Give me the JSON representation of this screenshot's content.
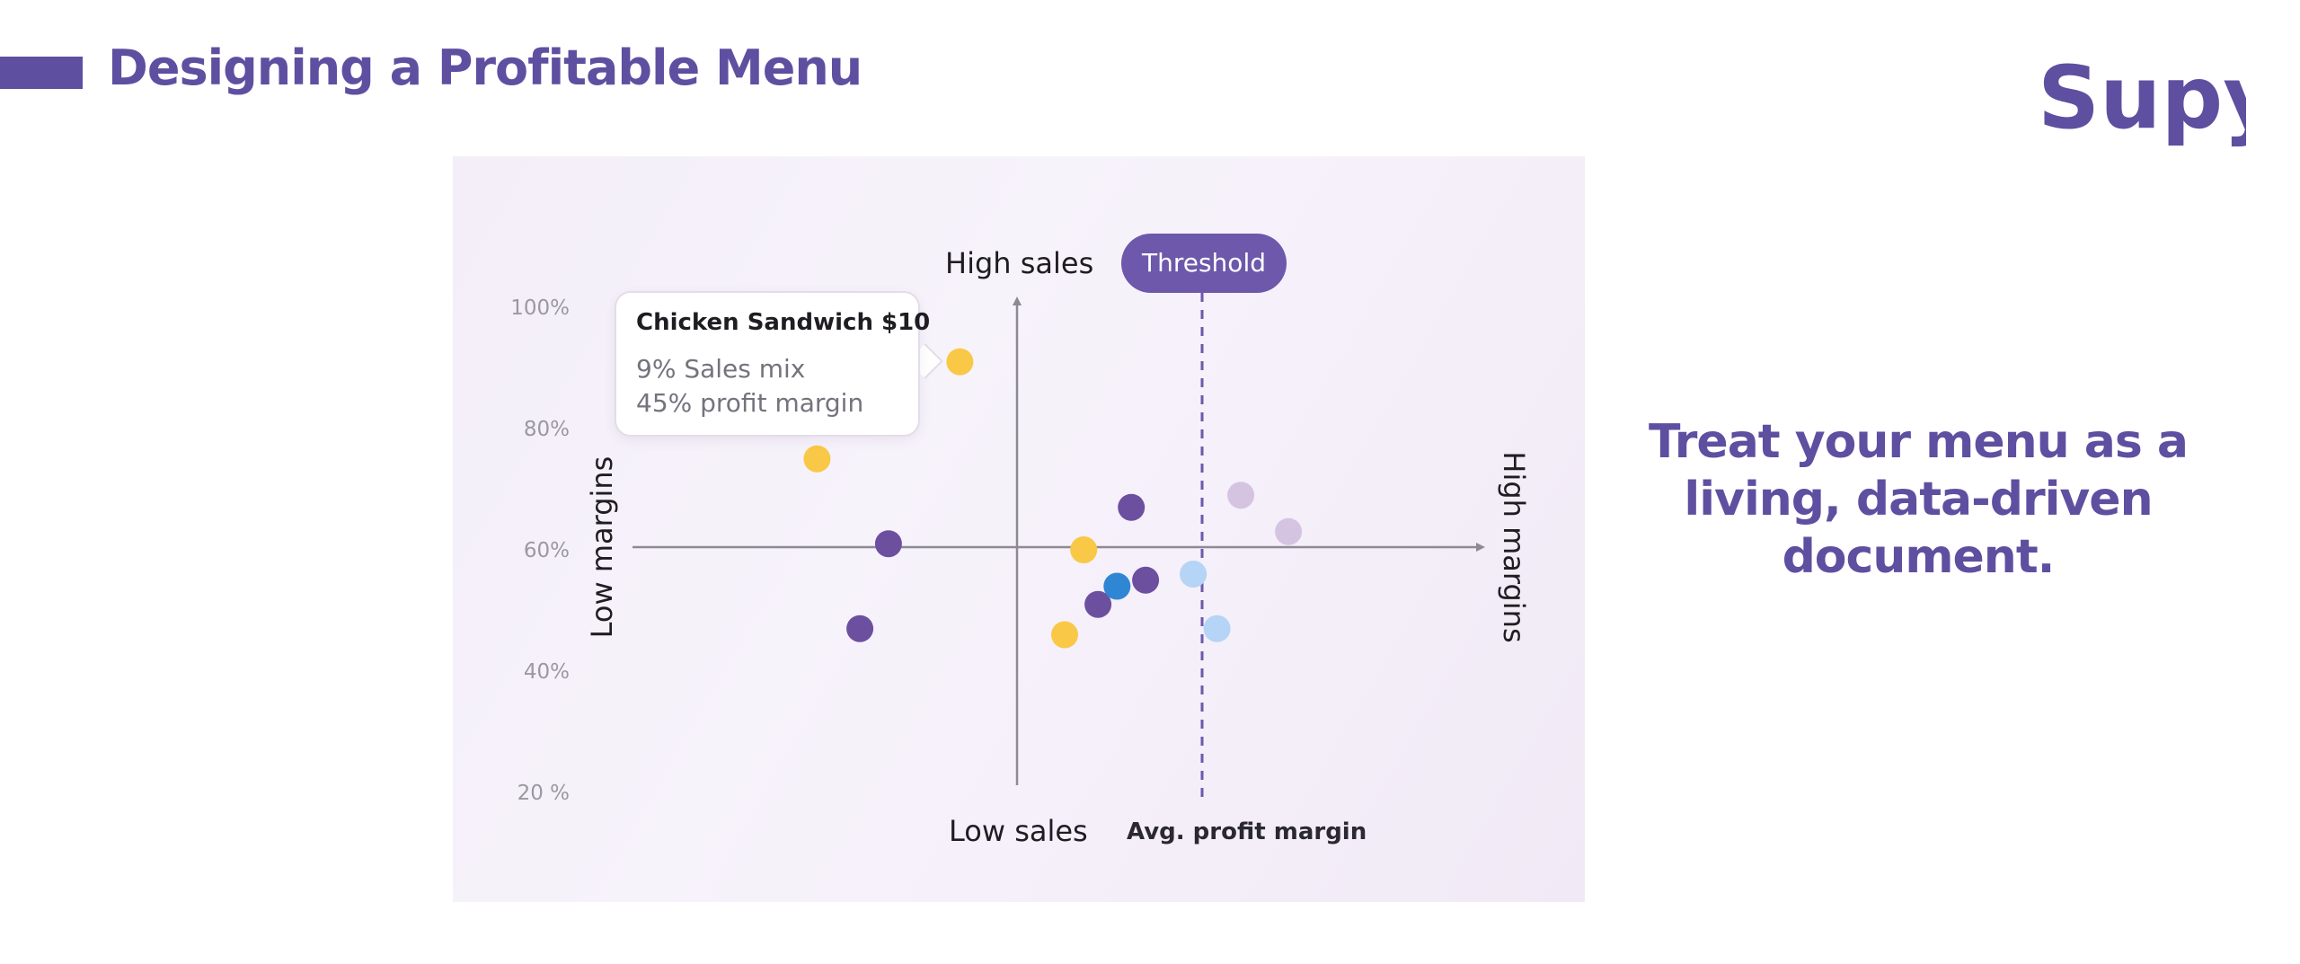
{
  "header": {
    "title": "Designing a Profitable Menu",
    "logo_text": "Supy"
  },
  "tagline": "Treat your menu as a living, data-driven document.",
  "chart_data": {
    "type": "scatter",
    "title": "",
    "y_tick_labels": [
      "100%",
      "80%",
      "60%",
      "40%",
      "20 %"
    ],
    "axis_words": {
      "top": "High sales",
      "bottom": "Low sales",
      "left": "Low margins",
      "right": "High margins"
    },
    "threshold_label": "Threshold",
    "threshold_axis_label": "Avg. profit margin",
    "tooltip": {
      "title": "Chicken Sandwich $10",
      "line1": "9% Sales mix",
      "line2": "45% profit margin"
    },
    "colors": {
      "yellow": "#f9c846",
      "purple": "#6d4fa0",
      "blue": "#2f86d3",
      "light_blue": "#b5d4f6",
      "lavender": "#d4c4e2"
    },
    "points": [
      {
        "x": -0.12,
        "y": 91,
        "color": "yellow"
      },
      {
        "x": -0.42,
        "y": 75,
        "color": "yellow"
      },
      {
        "x": -0.27,
        "y": 61,
        "color": "purple"
      },
      {
        "x": -0.33,
        "y": 47,
        "color": "purple"
      },
      {
        "x": 0.14,
        "y": 60,
        "color": "yellow"
      },
      {
        "x": 0.1,
        "y": 46,
        "color": "yellow"
      },
      {
        "x": 0.17,
        "y": 51,
        "color": "purple"
      },
      {
        "x": 0.24,
        "y": 67,
        "color": "purple"
      },
      {
        "x": 0.21,
        "y": 54,
        "color": "blue"
      },
      {
        "x": 0.27,
        "y": 55,
        "color": "purple"
      },
      {
        "x": 0.37,
        "y": 56,
        "color": "light_blue"
      },
      {
        "x": 0.42,
        "y": 47,
        "color": "light_blue"
      },
      {
        "x": 0.47,
        "y": 69,
        "color": "lavender"
      },
      {
        "x": 0.57,
        "y": 63,
        "color": "lavender"
      }
    ]
  }
}
